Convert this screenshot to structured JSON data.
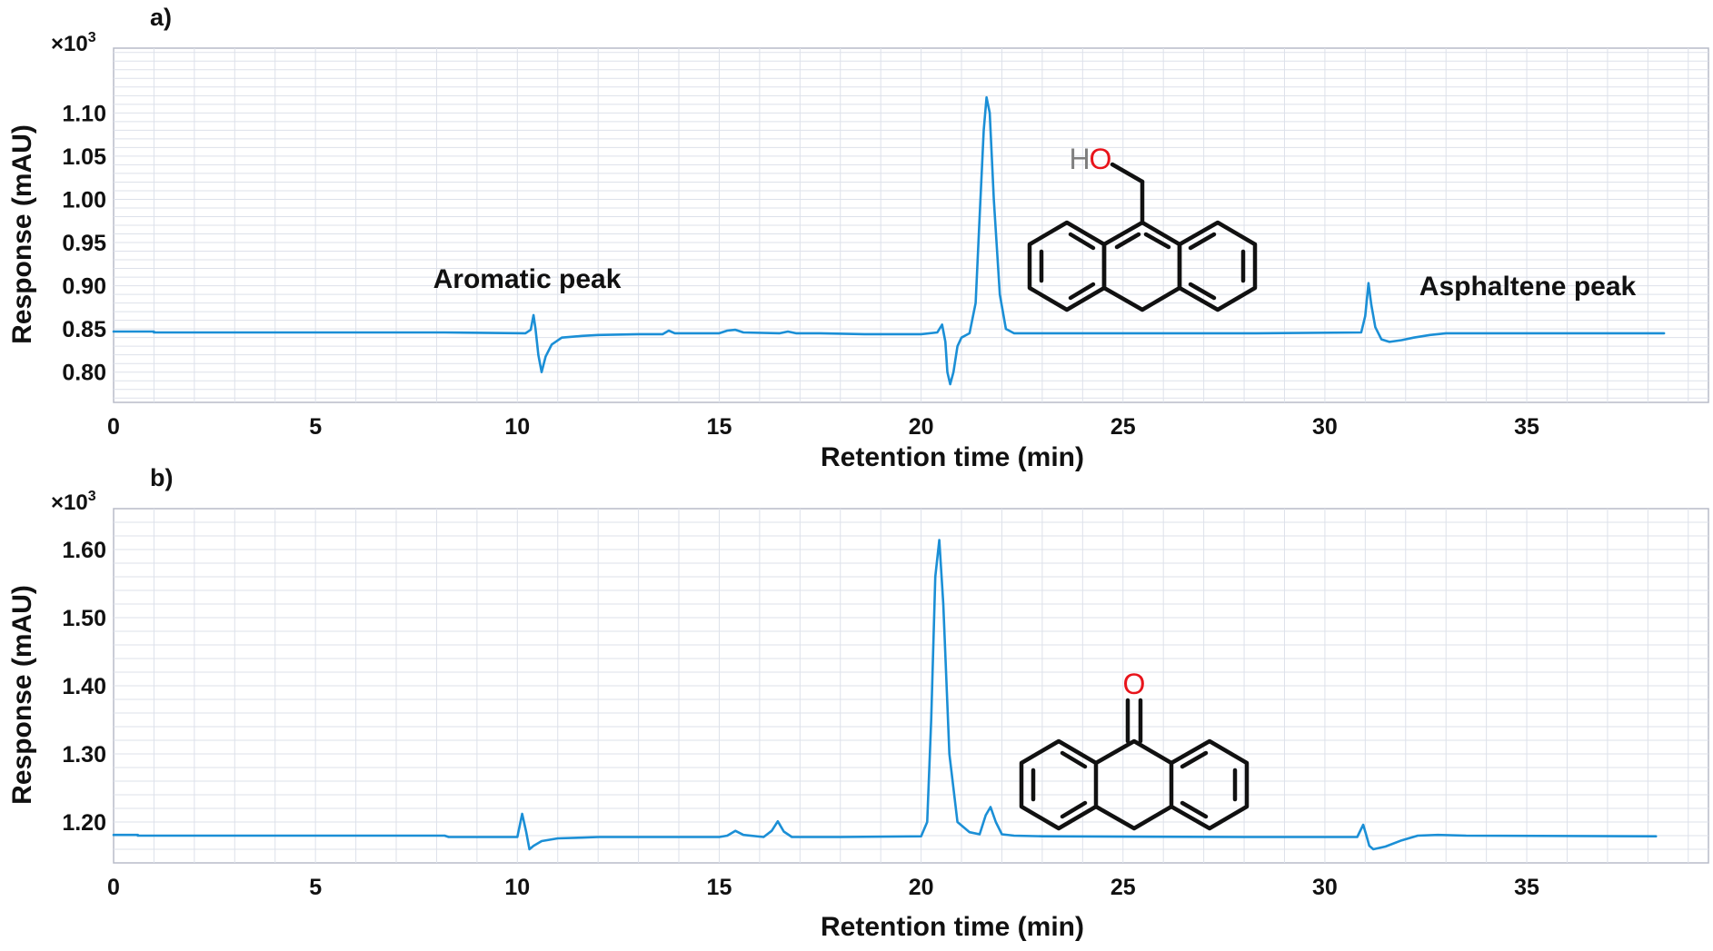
{
  "chart_data": [
    {
      "type": "line",
      "panel_label": "a)",
      "xlabel": "Retention time (min)",
      "ylabel": "Response (mAU)",
      "y_multiplier": "×10",
      "y_multiplier_exp": "3",
      "xlim": [
        0,
        39.5
      ],
      "ylim": [
        0.765,
        1.175
      ],
      "x_ticks": [
        0,
        5,
        10,
        15,
        20,
        25,
        30,
        35
      ],
      "y_ticks": [
        0.8,
        0.85,
        0.9,
        0.95,
        1.0,
        1.05,
        1.1
      ],
      "y_tick_labels": [
        "0.80",
        "0.85",
        "0.90",
        "0.95",
        "1.00",
        "1.05",
        "1.10"
      ],
      "grid": true,
      "structure": "9-anthracenemethanol",
      "structure_atoms": {
        "h": "H",
        "o": "O"
      },
      "annotations": [
        {
          "text": "Aromatic peak",
          "x": 10.2,
          "y": 0.895
        },
        {
          "text": "Asphaltene peak",
          "x": 34.7,
          "y": 0.888
        }
      ],
      "series": [
        {
          "color": "#1b8fd6",
          "baseline": 0.845,
          "x": [
            0,
            1.0,
            1.0,
            8.2,
            10.2,
            10.33,
            10.4,
            10.45,
            10.52,
            10.6,
            10.7,
            10.85,
            11.1,
            11.6,
            12.0,
            13.0,
            13.6,
            13.75,
            13.9,
            14.4,
            15.0,
            15.2,
            15.4,
            15.6,
            16.5,
            16.7,
            16.9,
            17.5,
            18.6,
            20.0,
            20.4,
            20.52,
            20.6,
            20.65,
            20.72,
            20.8,
            20.9,
            21.0,
            21.2,
            21.35,
            21.45,
            21.55,
            21.62,
            21.7,
            21.8,
            21.95,
            22.1,
            22.3,
            22.6,
            24.0,
            28.3,
            30.9,
            31.0,
            31.08,
            31.15,
            31.25,
            31.4,
            31.6,
            31.9,
            32.2,
            32.6,
            33.0,
            34.0,
            38.4
          ],
          "y": [
            0.847,
            0.847,
            0.846,
            0.846,
            0.845,
            0.849,
            0.866,
            0.85,
            0.82,
            0.8,
            0.818,
            0.832,
            0.84,
            0.842,
            0.843,
            0.844,
            0.844,
            0.848,
            0.845,
            0.845,
            0.845,
            0.848,
            0.849,
            0.846,
            0.845,
            0.847,
            0.845,
            0.845,
            0.844,
            0.844,
            0.846,
            0.855,
            0.835,
            0.8,
            0.786,
            0.8,
            0.83,
            0.84,
            0.845,
            0.88,
            0.98,
            1.08,
            1.118,
            1.1,
            1.0,
            0.89,
            0.85,
            0.845,
            0.845,
            0.845,
            0.845,
            0.846,
            0.865,
            0.903,
            0.878,
            0.852,
            0.838,
            0.835,
            0.837,
            0.84,
            0.843,
            0.845,
            0.845,
            0.845
          ]
        }
      ]
    },
    {
      "type": "line",
      "panel_label": "b)",
      "xlabel": "Retention time (min)",
      "ylabel": "Response (mAU)",
      "y_multiplier": "×10",
      "y_multiplier_exp": "3",
      "xlim": [
        0,
        39.5
      ],
      "ylim": [
        1.14,
        1.66
      ],
      "x_ticks": [
        0,
        5,
        10,
        15,
        20,
        25,
        30,
        35
      ],
      "y_ticks": [
        1.2,
        1.3,
        1.4,
        1.5,
        1.6
      ],
      "y_tick_labels": [
        "1.20",
        "1.30",
        "1.40",
        "1.50",
        "1.60"
      ],
      "grid": true,
      "structure": "anthrone",
      "structure_atoms": {
        "o": "O"
      },
      "series": [
        {
          "color": "#1b8fd6",
          "baseline": 1.18,
          "x": [
            0,
            0.6,
            0.6,
            8.2,
            8.3,
            10.0,
            10.12,
            10.22,
            10.3,
            10.4,
            10.6,
            11.0,
            11.6,
            12.0,
            15.0,
            15.2,
            15.4,
            15.6,
            16.1,
            16.3,
            16.45,
            16.6,
            16.8,
            18.0,
            20.0,
            20.15,
            20.25,
            20.35,
            20.45,
            20.55,
            20.7,
            20.9,
            21.2,
            21.45,
            21.6,
            21.72,
            21.85,
            22.0,
            22.3,
            23.0,
            28.0,
            30.8,
            30.95,
            31.02,
            31.1,
            31.2,
            31.5,
            31.9,
            32.3,
            32.8,
            33.5,
            38.2
          ],
          "y": [
            1.181,
            1.181,
            1.18,
            1.18,
            1.178,
            1.178,
            1.212,
            1.185,
            1.16,
            1.165,
            1.172,
            1.176,
            1.177,
            1.178,
            1.178,
            1.18,
            1.187,
            1.181,
            1.178,
            1.187,
            1.201,
            1.186,
            1.178,
            1.178,
            1.179,
            1.2,
            1.35,
            1.56,
            1.614,
            1.52,
            1.3,
            1.2,
            1.185,
            1.182,
            1.21,
            1.222,
            1.2,
            1.182,
            1.18,
            1.179,
            1.178,
            1.178,
            1.196,
            1.182,
            1.165,
            1.16,
            1.164,
            1.173,
            1.18,
            1.181,
            1.18,
            1.179
          ]
        }
      ]
    }
  ]
}
